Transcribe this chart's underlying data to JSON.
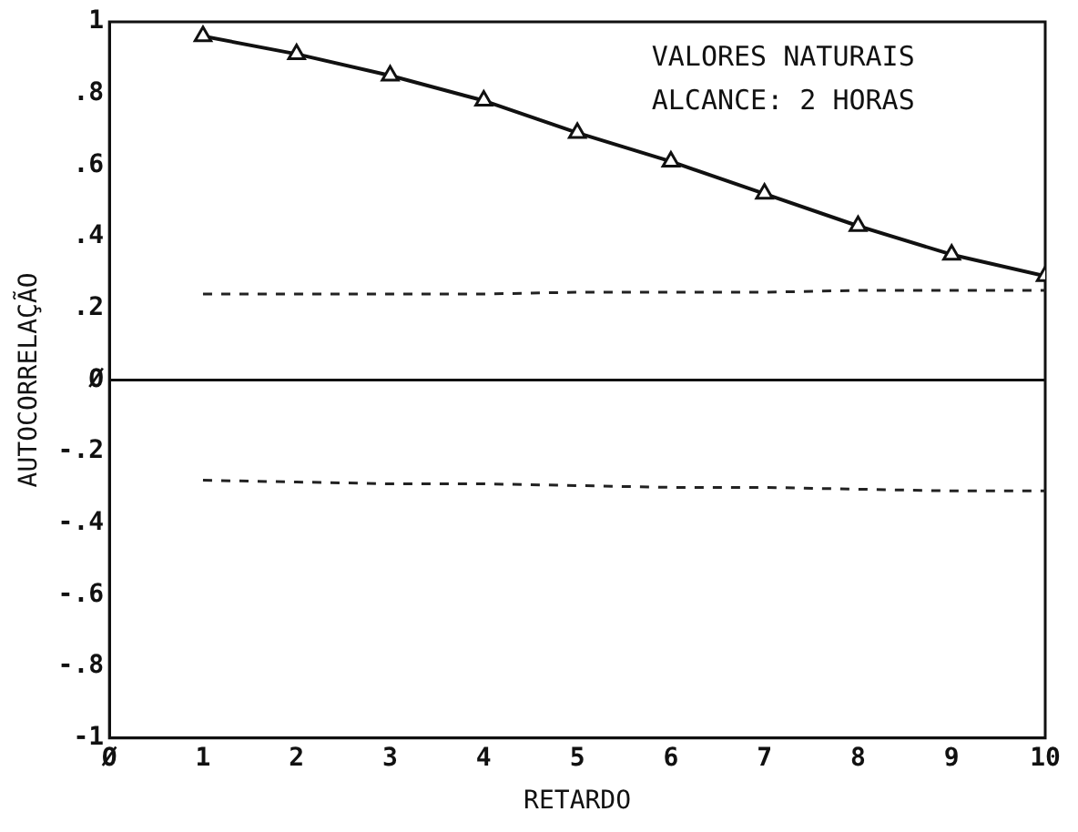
{
  "chart_data": {
    "type": "line",
    "xlabel": "RETARDO",
    "ylabel": "AUTOCORRELAÇÃO",
    "annotations": [
      "VALORES NATURAIS",
      "ALCANCE: 2 HORAS"
    ],
    "x": [
      1,
      2,
      3,
      4,
      5,
      6,
      7,
      8,
      9,
      10
    ],
    "series": [
      {
        "color": "#111111",
        "marker": "triangle",
        "line_style": "solid",
        "values": [
          0.96,
          0.91,
          0.85,
          0.78,
          0.69,
          0.61,
          0.52,
          0.43,
          0.35,
          0.29
        ]
      },
      {
        "color": "#222222",
        "marker": "none",
        "line_style": "dashed",
        "values": [
          0.24,
          0.24,
          0.24,
          0.24,
          0.245,
          0.245,
          0.245,
          0.25,
          0.25,
          0.25
        ]
      },
      {
        "color": "#222222",
        "marker": "none",
        "line_style": "dashed",
        "values": [
          -0.28,
          -0.285,
          -0.29,
          -0.29,
          -0.295,
          -0.3,
          -0.3,
          -0.305,
          -0.31,
          -0.31
        ]
      }
    ],
    "xlim": [
      0,
      10
    ],
    "xticks": [
      {
        "value": 0,
        "label": "Ø"
      },
      1,
      2,
      3,
      4,
      5,
      6,
      7,
      8,
      9,
      10
    ],
    "ylim": [
      -1,
      1
    ],
    "yticks": [
      {
        "value": -1,
        "label": "-1"
      },
      {
        "value": -0.8,
        "label": "-.8"
      },
      {
        "value": -0.6,
        "label": "-.6"
      },
      {
        "value": -0.4,
        "label": "-.4"
      },
      {
        "value": -0.2,
        "label": "-.2"
      },
      {
        "value": 0,
        "label": "Ø"
      },
      {
        "value": 0.2,
        "label": ".2"
      },
      {
        "value": 0.4,
        "label": ".4"
      },
      {
        "value": 0.6,
        "label": ".6"
      },
      {
        "value": 0.8,
        "label": ".8"
      },
      1
    ],
    "ref_lines": [
      {
        "axis": "y",
        "value": 0,
        "color": "#111111",
        "line_style": "solid"
      }
    ],
    "grid": false,
    "legend": false
  }
}
